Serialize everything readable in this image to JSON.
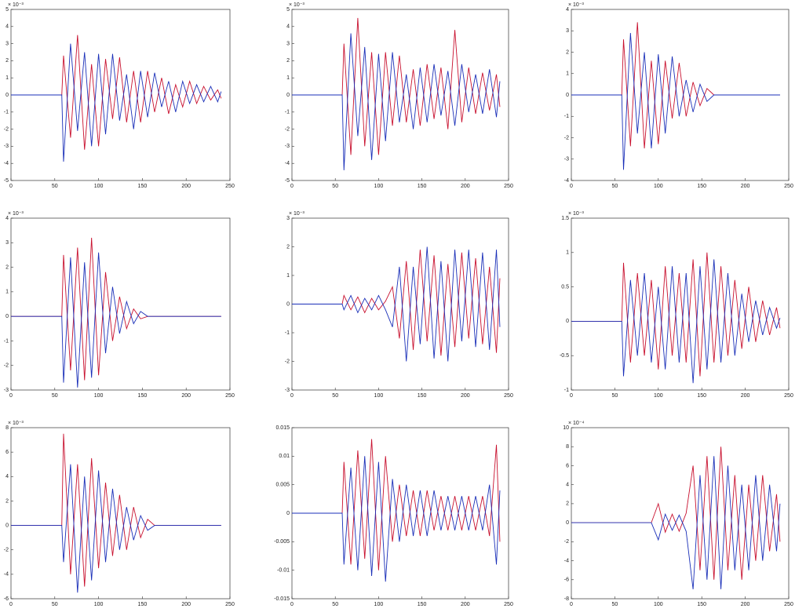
{
  "chart_data": [
    {
      "type": "line",
      "exponent_label": "× 10⁻³",
      "xlim": [
        0,
        250
      ],
      "xticks": [
        0,
        50,
        100,
        150,
        200,
        250
      ],
      "ylim": [
        -5,
        5
      ],
      "yticks": [
        -5,
        -4,
        -3,
        -2,
        -1,
        0,
        1,
        2,
        3,
        4,
        5
      ],
      "x": [
        0,
        58,
        60,
        68,
        76,
        84,
        92,
        100,
        108,
        116,
        124,
        132,
        140,
        148,
        156,
        164,
        172,
        180,
        188,
        196,
        204,
        212,
        220,
        228,
        236,
        240
      ],
      "series": [
        {
          "color": "#c8102e",
          "values": [
            0,
            0,
            2.3,
            -2.5,
            3.5,
            -3.2,
            1.8,
            -3,
            2.1,
            -1.4,
            2.2,
            -1.6,
            1.4,
            -1.6,
            1.4,
            -1,
            1,
            -1.1,
            0.6,
            -0.7,
            0.8,
            -0.5,
            0.5,
            -0.3,
            0.3,
            -0.2
          ]
        },
        {
          "color": "#1a2fb8",
          "values": [
            0,
            0,
            -3.9,
            3,
            -2.1,
            2.5,
            -3,
            2.4,
            -2.3,
            2.4,
            -1.5,
            1.2,
            -2,
            1.4,
            -1.3,
            1.3,
            -0.7,
            0.8,
            -1,
            0.8,
            -0.5,
            0.6,
            -0.4,
            0.5,
            -0.4,
            0.2
          ]
        }
      ]
    },
    {
      "type": "line",
      "exponent_label": "× 10⁻³",
      "xlim": [
        0,
        250
      ],
      "xticks": [
        0,
        50,
        100,
        150,
        200,
        250
      ],
      "ylim": [
        -5,
        5
      ],
      "yticks": [
        -5,
        -4,
        -3,
        -2,
        -1,
        0,
        1,
        2,
        3,
        4,
        5
      ],
      "x": [
        0,
        58,
        60,
        68,
        76,
        84,
        92,
        100,
        108,
        116,
        124,
        132,
        140,
        148,
        156,
        164,
        172,
        180,
        188,
        196,
        204,
        212,
        220,
        228,
        236,
        240
      ],
      "series": [
        {
          "color": "#c8102e",
          "values": [
            0,
            0,
            3,
            -3.5,
            4.5,
            -3,
            2.5,
            -3.5,
            2.5,
            -1.8,
            2.3,
            -1.6,
            1.5,
            -1.8,
            1.8,
            -1.4,
            1.6,
            -2,
            3.8,
            -1.6,
            1.6,
            -1.1,
            1.3,
            -0.9,
            1.2,
            -0.7
          ]
        },
        {
          "color": "#1a2fb8",
          "values": [
            0,
            0,
            -4.4,
            3.6,
            -2.4,
            2.8,
            -3.8,
            2.4,
            -2.7,
            2.5,
            -1.6,
            1.2,
            -2,
            1.6,
            -1.6,
            1.8,
            -1.2,
            1.4,
            -1.8,
            1.8,
            -1,
            1.2,
            -1.1,
            1.5,
            -1.3,
            0.8
          ]
        }
      ]
    },
    {
      "type": "line",
      "exponent_label": "× 10⁻³",
      "xlim": [
        0,
        250
      ],
      "xticks": [
        0,
        50,
        100,
        150,
        200,
        250
      ],
      "ylim": [
        -4,
        4
      ],
      "yticks": [
        -4,
        -3,
        -2,
        -1,
        0,
        1,
        2,
        3,
        4
      ],
      "x": [
        0,
        58,
        60,
        68,
        76,
        84,
        92,
        100,
        108,
        116,
        124,
        132,
        140,
        148,
        156,
        164,
        172,
        180,
        188,
        196,
        204,
        212,
        220,
        228,
        236,
        240
      ],
      "series": [
        {
          "color": "#c8102e",
          "values": [
            0,
            0,
            2.6,
            -2.4,
            3.4,
            -2.5,
            1.6,
            -2.3,
            1.6,
            -1.1,
            1.5,
            -1,
            0.6,
            -0.5,
            0.3,
            0,
            0,
            0,
            0,
            0,
            0,
            0,
            0,
            0,
            0,
            0
          ]
        },
        {
          "color": "#1a2fb8",
          "values": [
            0,
            0,
            -3.5,
            2.9,
            -1.8,
            2,
            -2.5,
            1.9,
            -1.8,
            1.8,
            -1,
            0.7,
            -0.8,
            0.5,
            -0.3,
            0,
            0,
            0,
            0,
            0,
            0,
            0,
            0,
            0,
            0,
            0
          ]
        }
      ]
    },
    {
      "type": "line",
      "exponent_label": "× 10⁻³",
      "xlim": [
        0,
        250
      ],
      "xticks": [
        0,
        50,
        100,
        150,
        200,
        250
      ],
      "ylim": [
        -3,
        4
      ],
      "yticks": [
        -3,
        -2,
        -1,
        0,
        1,
        2,
        3,
        4
      ],
      "x": [
        0,
        58,
        60,
        68,
        76,
        84,
        92,
        100,
        108,
        116,
        124,
        132,
        140,
        148,
        156,
        164,
        172,
        180,
        188,
        196,
        204,
        212,
        220,
        228,
        236,
        240
      ],
      "series": [
        {
          "color": "#c8102e",
          "values": [
            0,
            0,
            2.5,
            -2.2,
            2.8,
            -2.6,
            3.2,
            -2.4,
            1.8,
            -1,
            0.8,
            -0.5,
            0.3,
            -0.1,
            0,
            0,
            0,
            0,
            0,
            0,
            0,
            0,
            0,
            0,
            0,
            0
          ]
        },
        {
          "color": "#1a2fb8",
          "values": [
            0,
            0,
            -2.7,
            2.4,
            -2.9,
            2.2,
            -2.5,
            2.6,
            -1.5,
            1.2,
            -0.7,
            0.6,
            -0.3,
            0.2,
            0,
            0,
            0,
            0,
            0,
            0,
            0,
            0,
            0,
            0,
            0,
            0
          ]
        }
      ]
    },
    {
      "type": "line",
      "exponent_label": "× 10⁻³",
      "xlim": [
        0,
        250
      ],
      "xticks": [
        0,
        50,
        100,
        150,
        200,
        250
      ],
      "ylim": [
        -3,
        3
      ],
      "yticks": [
        -3,
        -2,
        -1,
        0,
        1,
        2,
        3
      ],
      "x": [
        0,
        58,
        60,
        68,
        76,
        84,
        92,
        100,
        108,
        116,
        124,
        132,
        140,
        148,
        156,
        164,
        172,
        180,
        188,
        196,
        204,
        212,
        220,
        228,
        236,
        240
      ],
      "series": [
        {
          "color": "#c8102e",
          "values": [
            0,
            0,
            0.3,
            -0.2,
            0.25,
            -0.3,
            0.2,
            -0.2,
            0.1,
            0.6,
            -1.2,
            1.5,
            -1.6,
            1.9,
            -1.3,
            1.7,
            -1.8,
            1.4,
            -1.5,
            1.8,
            -1.2,
            1.6,
            -1.4,
            1.3,
            -1.7,
            0.9
          ]
        },
        {
          "color": "#1a2fb8",
          "values": [
            0,
            0,
            -0.2,
            0.3,
            -0.3,
            0.2,
            -0.2,
            0.3,
            -0.2,
            -0.8,
            1.3,
            -2,
            1.3,
            -1.4,
            2,
            -1.9,
            1.5,
            -2,
            1.9,
            -1.3,
            1.9,
            -1.5,
            1.8,
            -1.6,
            1.9,
            -0.8
          ]
        }
      ]
    },
    {
      "type": "line",
      "exponent_label": "× 10⁻³",
      "xlim": [
        0,
        250
      ],
      "xticks": [
        0,
        50,
        100,
        150,
        200,
        250
      ],
      "ylim": [
        -1,
        1.5
      ],
      "yticks": [
        -1,
        -0.5,
        0,
        0.5,
        1,
        1.5
      ],
      "x": [
        0,
        58,
        60,
        68,
        76,
        84,
        92,
        100,
        108,
        116,
        124,
        132,
        140,
        148,
        156,
        164,
        172,
        180,
        188,
        196,
        204,
        212,
        220,
        228,
        236,
        240
      ],
      "series": [
        {
          "color": "#c8102e",
          "values": [
            0,
            0,
            0.85,
            -0.6,
            0.7,
            -0.5,
            0.6,
            -0.7,
            0.8,
            -0.5,
            0.7,
            -0.6,
            0.9,
            -0.8,
            1,
            -0.6,
            0.8,
            -0.5,
            0.6,
            -0.4,
            0.5,
            -0.3,
            0.3,
            -0.2,
            0.2,
            -0.1
          ]
        },
        {
          "color": "#1a2fb8",
          "values": [
            0,
            0,
            -0.8,
            0.6,
            -0.5,
            0.7,
            -0.6,
            0.5,
            -0.7,
            0.8,
            -0.6,
            0.7,
            -0.9,
            0.8,
            -0.7,
            0.9,
            -0.6,
            0.7,
            -0.5,
            0.4,
            -0.3,
            0.3,
            -0.2,
            0.2,
            -0.1,
            0.05
          ]
        }
      ]
    },
    {
      "type": "line",
      "exponent_label": "× 10⁻³",
      "xlim": [
        0,
        250
      ],
      "xticks": [
        0,
        50,
        100,
        150,
        200,
        250
      ],
      "ylim": [
        -6,
        8
      ],
      "yticks": [
        -6,
        -4,
        -2,
        0,
        2,
        4,
        6,
        8
      ],
      "x": [
        0,
        58,
        60,
        68,
        76,
        84,
        92,
        100,
        108,
        116,
        124,
        132,
        140,
        148,
        156,
        164,
        172,
        180,
        188,
        196,
        204,
        212,
        220,
        228,
        236,
        240
      ],
      "series": [
        {
          "color": "#c8102e",
          "values": [
            0,
            0,
            7.5,
            -4,
            5,
            -5,
            5.5,
            -3.5,
            3.5,
            -2.5,
            2.5,
            -2,
            1.5,
            -1,
            0.5,
            0,
            0,
            0,
            0,
            0,
            0,
            0,
            0,
            0,
            0,
            0
          ]
        },
        {
          "color": "#1a2fb8",
          "values": [
            0,
            0,
            -3,
            5,
            -5.5,
            4,
            -4.5,
            4.5,
            -3,
            3,
            -2,
            1.5,
            -1.2,
            0.8,
            -0.4,
            0,
            0,
            0,
            0,
            0,
            0,
            0,
            0,
            0,
            0,
            0
          ]
        }
      ]
    },
    {
      "type": "line",
      "xlim": [
        0,
        250
      ],
      "xticks": [
        0,
        50,
        100,
        150,
        200,
        250
      ],
      "ylim": [
        -0.015,
        0.015
      ],
      "yticks": [
        -0.015,
        -0.01,
        -0.005,
        0,
        0.005,
        0.01,
        0.015
      ],
      "x": [
        0,
        58,
        60,
        68,
        76,
        84,
        92,
        100,
        108,
        116,
        124,
        132,
        140,
        148,
        156,
        164,
        172,
        180,
        188,
        196,
        204,
        212,
        220,
        228,
        236,
        240
      ],
      "series": [
        {
          "color": "#c8102e",
          "values": [
            0,
            0,
            0.009,
            -0.009,
            0.011,
            -0.008,
            0.013,
            -0.01,
            0.01,
            -0.005,
            0.005,
            -0.004,
            0.004,
            -0.004,
            0.004,
            -0.003,
            0.003,
            -0.003,
            0.003,
            -0.003,
            0.003,
            -0.003,
            0.003,
            -0.004,
            0.012,
            -0.005
          ]
        },
        {
          "color": "#1a2fb8",
          "values": [
            0,
            0,
            -0.009,
            0.008,
            -0.01,
            0.01,
            -0.011,
            0.009,
            -0.012,
            0.006,
            -0.005,
            0.005,
            -0.004,
            0.004,
            -0.004,
            0.004,
            -0.003,
            0.003,
            -0.003,
            0.003,
            -0.003,
            0.003,
            -0.003,
            0.005,
            -0.009,
            0.004
          ]
        }
      ]
    },
    {
      "type": "line",
      "exponent_label": "× 10⁻⁴",
      "xlim": [
        0,
        250
      ],
      "xticks": [
        0,
        50,
        100,
        150,
        200,
        250
      ],
      "ylim": [
        -8,
        10
      ],
      "yticks": [
        -8,
        -6,
        -4,
        -2,
        0,
        2,
        4,
        6,
        8,
        10
      ],
      "x": [
        0,
        58,
        60,
        68,
        76,
        84,
        92,
        100,
        108,
        116,
        124,
        132,
        140,
        148,
        156,
        164,
        172,
        180,
        188,
        196,
        204,
        212,
        220,
        228,
        236,
        240
      ],
      "series": [
        {
          "color": "#c8102e",
          "values": [
            0,
            0,
            0,
            0,
            0,
            0,
            0,
            2,
            -1,
            0.9,
            -0.9,
            1,
            6,
            -5,
            7,
            -6,
            8,
            -5,
            5,
            -6,
            4,
            -4,
            5,
            -3,
            3,
            -2
          ]
        },
        {
          "color": "#1a2fb8",
          "values": [
            0,
            0,
            0,
            0,
            0,
            0,
            0,
            -1.8,
            0.9,
            -0.8,
            0.8,
            -0.9,
            -7,
            5,
            -6,
            7,
            -7,
            6,
            -5,
            4,
            -5,
            5,
            -4,
            4,
            -3,
            2
          ]
        }
      ]
    }
  ]
}
